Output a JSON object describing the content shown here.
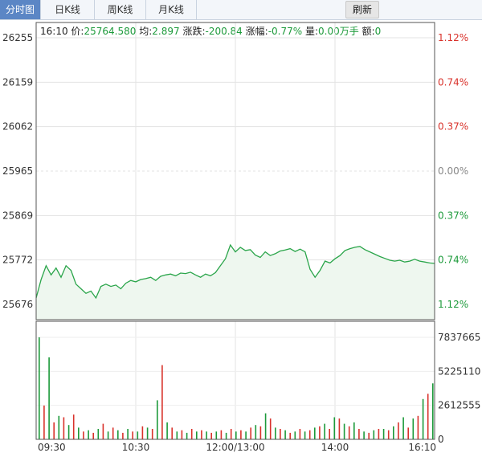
{
  "tabs": [
    {
      "label": "分时图",
      "active": true
    },
    {
      "label": "日K线",
      "active": false
    },
    {
      "label": "周K线",
      "active": false
    },
    {
      "label": "月K线",
      "active": false
    }
  ],
  "refresh_label": "刷新",
  "info": {
    "time": "16:10",
    "price_label": "价:",
    "price": "25764.580",
    "avg_label": "均:",
    "avg": "2.897",
    "change_label": "涨跌:",
    "change": "-200.84",
    "pct_label": "涨幅:",
    "pct": "-0.77%",
    "vol_label": "量:",
    "vol": "0.00万手",
    "amt_label": "额:",
    "amt": "0"
  },
  "colors": {
    "up": "#d9322b",
    "down": "#1c9a3a",
    "line": "#2aa54a",
    "neutral": "#888888"
  },
  "chart_data": {
    "type": "line",
    "price_axis": {
      "left_ticks": [
        "26255",
        "26159",
        "26062",
        "25965",
        "25869",
        "25772",
        "25676"
      ],
      "right_ticks": [
        "1.12%",
        "0.74%",
        "0.37%",
        "0.00%",
        "0.37%",
        "0.74%",
        "1.12%"
      ],
      "ylim": [
        25676,
        26255
      ]
    },
    "volume_axis": {
      "right_ticks": [
        "7837665",
        "5225110",
        "2612555",
        "0"
      ],
      "ylim": [
        0,
        7837665
      ]
    },
    "time_ticks": [
      "09:30",
      "10:30",
      "12:00/13:00",
      "14:00",
      "16:10"
    ],
    "price_series": {
      "name": "",
      "x": [
        0,
        3,
        6,
        9,
        12,
        15,
        18,
        21,
        24,
        27,
        30,
        33,
        36,
        39,
        42,
        45,
        48,
        51,
        54,
        57,
        60,
        63,
        66,
        69,
        72,
        75,
        78,
        81,
        84,
        87,
        90,
        93,
        96,
        99,
        102,
        105,
        108,
        111,
        114,
        117,
        120,
        123,
        126,
        129,
        132,
        135,
        138,
        141,
        144,
        147,
        150,
        153,
        156,
        159,
        162,
        165,
        168,
        171,
        174,
        177,
        180,
        183,
        186,
        189,
        192,
        195,
        198,
        201,
        204,
        207,
        210,
        213,
        216,
        219,
        222,
        225,
        228,
        231,
        234,
        237,
        240
      ],
      "values": [
        25690,
        25730,
        25760,
        25740,
        25755,
        25735,
        25760,
        25750,
        25720,
        25710,
        25700,
        25705,
        25690,
        25715,
        25720,
        25715,
        25718,
        25710,
        25722,
        25728,
        25725,
        25730,
        25732,
        25735,
        25728,
        25737,
        25740,
        25742,
        25738,
        25744,
        25743,
        25746,
        25740,
        25735,
        25742,
        25738,
        25745,
        25760,
        25775,
        25805,
        25790,
        25800,
        25793,
        25795,
        25783,
        25778,
        25790,
        25782,
        25786,
        25792,
        25794,
        25797,
        25791,
        25796,
        25790,
        25752,
        25735,
        25750,
        25770,
        25766,
        25775,
        25782,
        25793,
        25797,
        25800,
        25802,
        25795,
        25790,
        25785,
        25780,
        25776,
        25772,
        25770,
        25772,
        25768,
        25770,
        25774,
        25770,
        25768,
        25766,
        25765
      ]
    },
    "volume_series": {
      "name": "",
      "values": [
        7837665,
        2600000,
        6300000,
        1300000,
        1800000,
        1700000,
        1100000,
        1900000,
        900000,
        600000,
        700000,
        500000,
        800000,
        1200000,
        600000,
        900000,
        700000,
        500000,
        800000,
        600000,
        600000,
        1000000,
        900000,
        800000,
        3000000,
        5700000,
        1300000,
        900000,
        600000,
        700000,
        500000,
        800000,
        600000,
        700000,
        600000,
        500000,
        600000,
        700000,
        500000,
        800000,
        600000,
        700000,
        600000,
        900000,
        1100000,
        1000000,
        2000000,
        1600000,
        900000,
        800000,
        700000,
        500000,
        600000,
        800000,
        600000,
        700000,
        900000,
        1000000,
        1200000,
        800000,
        1700000,
        1600000,
        1200000,
        1000000,
        1300000,
        800000,
        600000,
        500000,
        700000,
        800000,
        800000,
        700000,
        1000000,
        1300000,
        1700000,
        900000,
        1600000,
        1800000,
        3100000,
        3500000,
        4300000
      ]
    }
  }
}
